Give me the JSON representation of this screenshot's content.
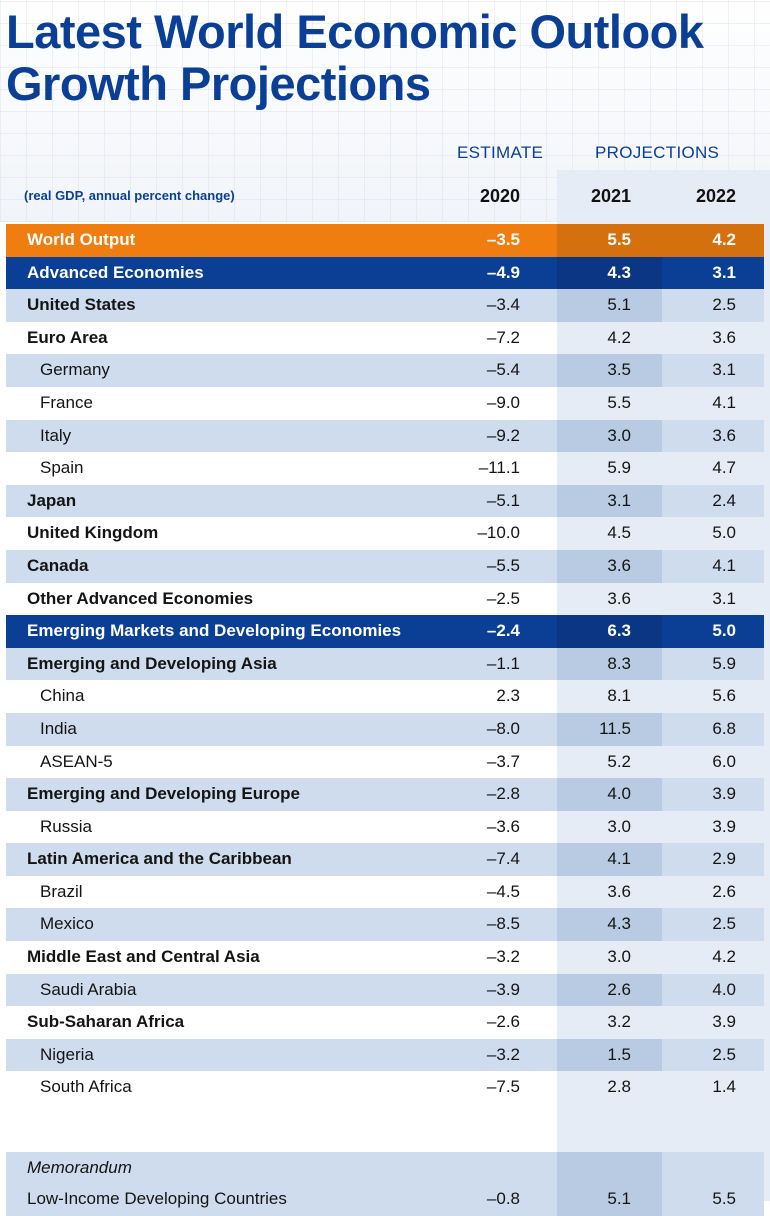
{
  "title_line1": "Latest World Economic Outlook",
  "title_line2": "Growth Projections",
  "estimate_label": "ESTIMATE",
  "projections_label": "PROJECTIONS",
  "subnote": "(real GDP, annual percent change)",
  "years": [
    "2020",
    "2021",
    "2022"
  ],
  "colors": {
    "title_blue": "#0b3f96",
    "orange": "#ef7d0f",
    "row_shade": "#cfdced",
    "proj_shade": "#b9cbe3"
  },
  "chart_data": {
    "type": "table",
    "title": "Latest World Economic Outlook Growth Projections",
    "subtitle": "(real GDP, annual percent change)",
    "columns": [
      "2020",
      "2021",
      "2022"
    ],
    "column_groups": [
      {
        "label": "ESTIMATE",
        "columns": [
          "2020"
        ]
      },
      {
        "label": "PROJECTIONS",
        "columns": [
          "2021",
          "2022"
        ]
      }
    ],
    "rows": [
      {
        "name": "World Output",
        "style": "world",
        "values": [
          "–3.5",
          "5.5",
          "4.2"
        ]
      },
      {
        "name": "Advanced Economies",
        "style": "blue",
        "values": [
          "–4.9",
          "4.3",
          "3.1"
        ]
      },
      {
        "name": "United States",
        "style": "shade",
        "values": [
          "–3.4",
          "5.1",
          "2.5"
        ]
      },
      {
        "name": "Euro Area",
        "style": "white",
        "values": [
          "–7.2",
          "4.2",
          "3.6"
        ]
      },
      {
        "name": "Germany",
        "style": "shade-indent",
        "values": [
          "–5.4",
          "3.5",
          "3.1"
        ]
      },
      {
        "name": "France",
        "style": "white-indent",
        "values": [
          "–9.0",
          "5.5",
          "4.1"
        ]
      },
      {
        "name": "Italy",
        "style": "shade-indent",
        "values": [
          "–9.2",
          "3.0",
          "3.6"
        ]
      },
      {
        "name": "Spain",
        "style": "white-indent",
        "values": [
          "–11.1",
          "5.9",
          "4.7"
        ]
      },
      {
        "name": "Japan",
        "style": "shade",
        "values": [
          "–5.1",
          "3.1",
          "2.4"
        ]
      },
      {
        "name": "United Kingdom",
        "style": "white",
        "values": [
          "–10.0",
          "4.5",
          "5.0"
        ]
      },
      {
        "name": "Canada",
        "style": "shade",
        "values": [
          "–5.5",
          "3.6",
          "4.1"
        ]
      },
      {
        "name": "Other Advanced Economies",
        "style": "white",
        "values": [
          "–2.5",
          "3.6",
          "3.1"
        ]
      },
      {
        "name": "Emerging Markets and Developing Economies",
        "style": "blue",
        "values": [
          "–2.4",
          "6.3",
          "5.0"
        ]
      },
      {
        "name": "Emerging and Developing Asia",
        "style": "shade",
        "values": [
          "–1.1",
          "8.3",
          "5.9"
        ]
      },
      {
        "name": "China",
        "style": "white-indent",
        "values": [
          "2.3",
          "8.1",
          "5.6"
        ]
      },
      {
        "name": "India",
        "style": "shade-indent",
        "values": [
          "–8.0",
          "11.5",
          "6.8"
        ]
      },
      {
        "name": "ASEAN-5",
        "style": "white-indent",
        "values": [
          "–3.7",
          "5.2",
          "6.0"
        ]
      },
      {
        "name": "Emerging and Developing Europe",
        "style": "shade",
        "values": [
          "–2.8",
          "4.0",
          "3.9"
        ]
      },
      {
        "name": "Russia",
        "style": "white-indent",
        "values": [
          "–3.6",
          "3.0",
          "3.9"
        ]
      },
      {
        "name": "Latin America and the Caribbean",
        "style": "shade",
        "values": [
          "–7.4",
          "4.1",
          "2.9"
        ]
      },
      {
        "name": "Brazil",
        "style": "white-indent",
        "values": [
          "–4.5",
          "3.6",
          "2.6"
        ]
      },
      {
        "name": "Mexico",
        "style": "shade-indent",
        "values": [
          "–8.5",
          "4.3",
          "2.5"
        ]
      },
      {
        "name": "Middle East and Central Asia",
        "style": "white",
        "values": [
          "–3.2",
          "3.0",
          "4.2"
        ]
      },
      {
        "name": "Saudi Arabia",
        "style": "shade-indent",
        "values": [
          "–3.9",
          "2.6",
          "4.0"
        ]
      },
      {
        "name": "Sub-Saharan Africa",
        "style": "white",
        "values": [
          "–2.6",
          "3.2",
          "3.9"
        ]
      },
      {
        "name": "Nigeria",
        "style": "shade-indent",
        "values": [
          "–3.2",
          "1.5",
          "2.5"
        ]
      },
      {
        "name": "South Africa",
        "style": "white-indent",
        "values": [
          "–7.5",
          "2.8",
          "1.4"
        ]
      }
    ],
    "memorandum": {
      "label": "Memorandum",
      "name": "Low-Income Developing Countries",
      "values": [
        "–0.8",
        "5.1",
        "5.5"
      ]
    }
  }
}
